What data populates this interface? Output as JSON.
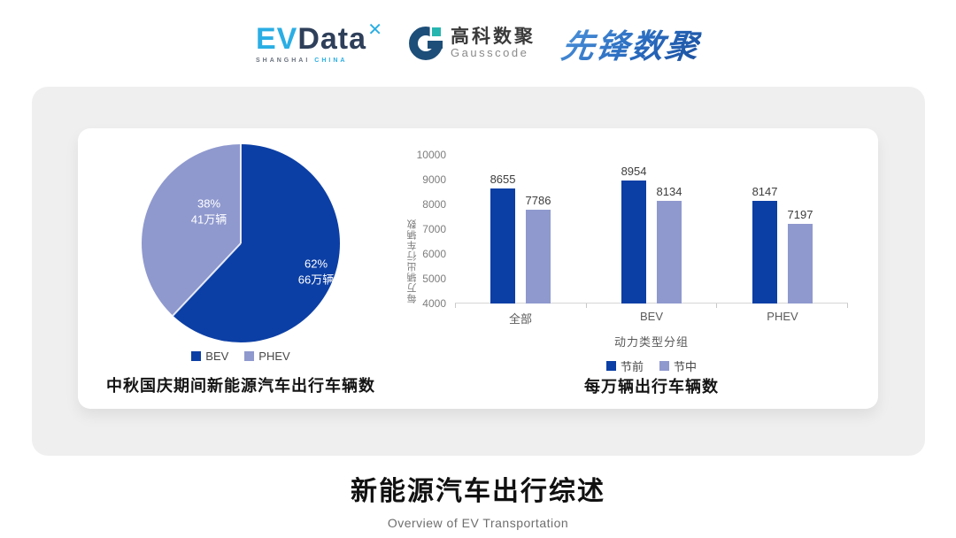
{
  "header": {
    "evdata": {
      "ev": "EV",
      "data": "Data",
      "mark": "✕",
      "sub_left": "SHANGHAI",
      "sub_right": "CHINA"
    },
    "gausscode": {
      "cn": "高科数聚",
      "en": "Gausscode"
    },
    "xianfeng": "先锋数聚"
  },
  "chart_data": [
    {
      "type": "pie",
      "title": "中秋国庆期间新能源汽车出行车辆数",
      "labels": [
        "BEV",
        "PHEV"
      ],
      "values_pct": [
        62,
        38
      ],
      "values_wan_liang": [
        66,
        41
      ],
      "colors": [
        "#0c3fa5",
        "#8f99ce"
      ],
      "labels_overlay": [
        {
          "pct": "62%",
          "amt": "66万辆"
        },
        {
          "pct": "38%",
          "amt": "41万辆"
        }
      ],
      "legend_position": "bottom",
      "start_angle_deg": 0
    },
    {
      "type": "bar",
      "title": "每万辆出行车辆数",
      "categories": [
        "全部",
        "BEV",
        "PHEV"
      ],
      "series": [
        {
          "name": "节前",
          "color": "#0c3fa5",
          "values": [
            8655,
            8954,
            8147
          ]
        },
        {
          "name": "节中",
          "color": "#8f99ce",
          "values": [
            7786,
            8134,
            7197
          ]
        }
      ],
      "xlabel": "动力类型分组",
      "ylabel": "每万辆出行车辆数",
      "ylim": [
        4000,
        10000
      ],
      "yticks": [
        10000,
        9000,
        8000,
        7000,
        6000,
        5000,
        4000
      ],
      "grid": false,
      "legend_position": "bottom"
    }
  ],
  "footer": {
    "title": "新能源汽车出行综述",
    "subtitle": "Overview of EV Transportation"
  }
}
